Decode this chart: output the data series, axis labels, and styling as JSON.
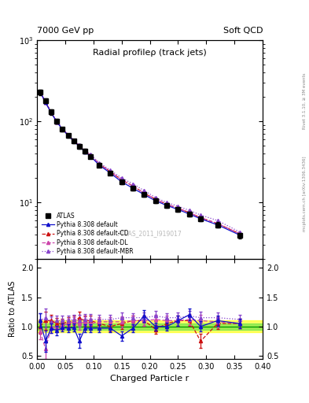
{
  "title_left": "7000 GeV pp",
  "title_right": "Soft QCD",
  "plot_title": "Radial profileρ (track jets)",
  "xlabel": "Charged Particle r",
  "ylabel_ratio": "Ratio to ATLAS",
  "atlas_id": "ATLAS_2011_I919017",
  "rivet_label": "Rivet 3.1.10, ≥ 3M events",
  "mcplots_label": "mcplots.cern.ch [arXiv:1306.3436]",
  "x_data": [
    0.005,
    0.015,
    0.025,
    0.035,
    0.045,
    0.055,
    0.065,
    0.075,
    0.085,
    0.095,
    0.11,
    0.13,
    0.15,
    0.17,
    0.19,
    0.21,
    0.23,
    0.25,
    0.27,
    0.29,
    0.32,
    0.36
  ],
  "atlas_y": [
    230,
    180,
    130,
    100,
    80,
    67,
    57,
    49,
    43,
    37,
    29,
    23,
    18,
    15,
    12.5,
    10.5,
    9.2,
    8.2,
    7.2,
    6.3,
    5.3,
    3.9
  ],
  "atlas_yerr_lo": [
    18,
    12,
    9,
    7,
    5,
    4,
    3.5,
    3,
    2.5,
    2,
    1.5,
    1.2,
    1.0,
    0.9,
    0.8,
    0.7,
    0.6,
    0.5,
    0.5,
    0.4,
    0.4,
    0.3
  ],
  "atlas_yerr_hi": [
    18,
    12,
    9,
    7,
    5,
    4,
    3.5,
    3,
    2.5,
    2,
    1.5,
    1.2,
    1.0,
    0.9,
    0.8,
    0.7,
    0.6,
    0.5,
    0.5,
    0.4,
    0.4,
    0.3
  ],
  "py_def_y": [
    235,
    170,
    128,
    98,
    80,
    67,
    57,
    49,
    42,
    37,
    29,
    23,
    18,
    15,
    12.5,
    10.5,
    9.2,
    8.2,
    7.2,
    6.3,
    5.3,
    3.95
  ],
  "py_cd_y": [
    235,
    173,
    129,
    99,
    81,
    68,
    58,
    50,
    43,
    38,
    30,
    24,
    19,
    16,
    13,
    11,
    9.5,
    8.5,
    7.5,
    6.5,
    5.5,
    4.1
  ],
  "py_dl_y": [
    233,
    172,
    129,
    99,
    81,
    68,
    58,
    50,
    43,
    38,
    30,
    24,
    19,
    16,
    13,
    11,
    9.5,
    8.5,
    7.5,
    6.5,
    5.5,
    4.1
  ],
  "py_mbr_y": [
    236,
    174,
    130,
    100,
    82,
    69,
    59,
    51,
    44,
    39,
    31,
    25,
    20,
    17,
    14,
    11.5,
    10,
    9,
    8,
    7,
    6,
    4.3
  ],
  "ratio_x": [
    0.005,
    0.015,
    0.025,
    0.035,
    0.045,
    0.055,
    0.065,
    0.075,
    0.085,
    0.095,
    0.11,
    0.13,
    0.15,
    0.17,
    0.19,
    0.21,
    0.23,
    0.25,
    0.27,
    0.29,
    0.32,
    0.36
  ],
  "r_def": [
    1.1,
    0.75,
    0.97,
    0.93,
    0.98,
    0.97,
    0.98,
    0.75,
    0.97,
    0.97,
    0.97,
    0.97,
    0.84,
    0.97,
    1.18,
    1.0,
    1.0,
    1.1,
    1.2,
    1.0,
    1.1,
    1.05
  ],
  "r_cd": [
    1.0,
    1.1,
    1.1,
    1.05,
    1.05,
    1.08,
    1.1,
    1.15,
    1.1,
    1.1,
    1.05,
    1.0,
    1.05,
    1.1,
    1.1,
    0.95,
    1.05,
    1.1,
    1.1,
    0.75,
    1.05,
    1.05
  ],
  "r_dl": [
    0.92,
    0.62,
    0.98,
    1.0,
    1.02,
    1.05,
    1.08,
    1.05,
    1.08,
    1.05,
    1.08,
    1.08,
    1.08,
    1.1,
    1.1,
    1.12,
    1.1,
    1.1,
    1.12,
    1.1,
    1.08,
    1.05
  ],
  "r_mbr": [
    1.1,
    1.15,
    1.08,
    1.1,
    1.1,
    1.1,
    1.12,
    1.1,
    1.12,
    1.12,
    1.12,
    1.12,
    1.15,
    1.15,
    1.15,
    1.18,
    1.15,
    1.15,
    1.18,
    1.15,
    1.15,
    1.12
  ],
  "r_def_err": [
    0.12,
    0.18,
    0.08,
    0.08,
    0.07,
    0.07,
    0.07,
    0.12,
    0.07,
    0.07,
    0.07,
    0.07,
    0.08,
    0.07,
    0.1,
    0.07,
    0.07,
    0.09,
    0.1,
    0.09,
    0.09,
    0.08
  ],
  "r_cd_err": [
    0.12,
    0.15,
    0.1,
    0.09,
    0.08,
    0.08,
    0.08,
    0.1,
    0.09,
    0.09,
    0.08,
    0.08,
    0.09,
    0.08,
    0.09,
    0.08,
    0.08,
    0.09,
    0.09,
    0.12,
    0.09,
    0.08
  ],
  "r_dl_err": [
    0.14,
    0.18,
    0.09,
    0.09,
    0.08,
    0.08,
    0.08,
    0.1,
    0.09,
    0.08,
    0.08,
    0.08,
    0.09,
    0.08,
    0.09,
    0.08,
    0.08,
    0.09,
    0.09,
    0.1,
    0.09,
    0.08
  ],
  "r_mbr_err": [
    0.13,
    0.16,
    0.09,
    0.09,
    0.08,
    0.08,
    0.08,
    0.1,
    0.09,
    0.09,
    0.08,
    0.08,
    0.09,
    0.08,
    0.09,
    0.08,
    0.08,
    0.09,
    0.09,
    0.1,
    0.09,
    0.08
  ],
  "color_atlas": "#000000",
  "color_def": "#1111cc",
  "color_cd": "#cc1111",
  "color_dl": "#cc44aa",
  "color_mbr": "#8844cc",
  "xlim": [
    0.0,
    0.4
  ],
  "ylim_main": [
    2.0,
    1000.0
  ],
  "ylim_ratio": [
    0.45,
    2.15
  ],
  "yticks_ratio": [
    0.5,
    1.0,
    1.5,
    2.0
  ]
}
